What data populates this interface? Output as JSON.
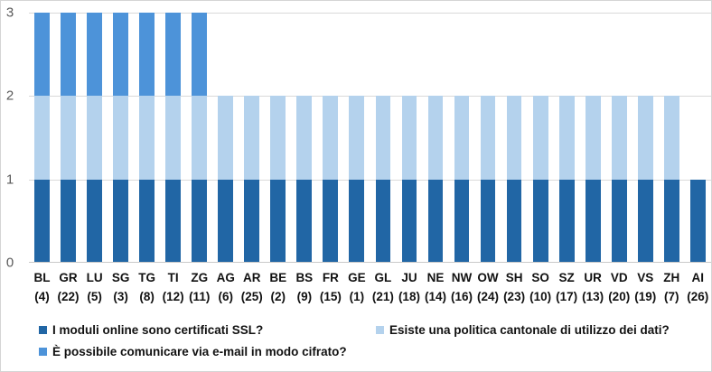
{
  "chart_data": {
    "type": "bar",
    "stacked": true,
    "title": "",
    "xlabel": "",
    "ylabel": "",
    "ylim": [
      0,
      3
    ],
    "yticks": [
      0,
      1,
      2,
      3
    ],
    "grid": true,
    "legend_position": "bottom",
    "categories": [
      "BL",
      "GR",
      "LU",
      "SG",
      "TG",
      "TI",
      "ZG",
      "AG",
      "AR",
      "BE",
      "BS",
      "FR",
      "GE",
      "GL",
      "JU",
      "NE",
      "NW",
      "OW",
      "SH",
      "SO",
      "SZ",
      "UR",
      "VD",
      "VS",
      "ZH",
      "AI"
    ],
    "category_ranks": [
      "(4)",
      "(22)",
      "(5)",
      "(3)",
      "(8)",
      "(12)",
      "(11)",
      "(6)",
      "(25)",
      "(2)",
      "(9)",
      "(15)",
      "(1)",
      "(21)",
      "(18)",
      "(14)",
      "(16)",
      "(24)",
      "(23)",
      "(10)",
      "(17)",
      "(13)",
      "(20)",
      "(19)",
      "(7)",
      "(26)"
    ],
    "series": [
      {
        "name": "I moduli online sono certificati SSL?",
        "color": "#2166a5",
        "values": [
          1,
          1,
          1,
          1,
          1,
          1,
          1,
          1,
          1,
          1,
          1,
          1,
          1,
          1,
          1,
          1,
          1,
          1,
          1,
          1,
          1,
          1,
          1,
          1,
          1,
          1
        ]
      },
      {
        "name": "Esiste una politica cantonale di utilizzo dei dati?",
        "color": "#b4d2ed",
        "values": [
          1,
          1,
          1,
          1,
          1,
          1,
          1,
          1,
          1,
          1,
          1,
          1,
          1,
          1,
          1,
          1,
          1,
          1,
          1,
          1,
          1,
          1,
          1,
          1,
          1,
          0
        ]
      },
      {
        "name": "È possibile comunicare via e-mail in modo cifrato?",
        "color": "#4d93d9",
        "values": [
          1,
          1,
          1,
          1,
          1,
          1,
          1,
          0,
          0,
          0,
          0,
          0,
          0,
          0,
          0,
          0,
          0,
          0,
          0,
          0,
          0,
          0,
          0,
          0,
          0,
          0
        ]
      }
    ],
    "colors": {
      "axis_text": "#595959",
      "label_text": "#111111",
      "gridline": "#d9d9d9",
      "axis_line": "#c9c9c9",
      "background": "#ffffff",
      "border": "#d5d5d5"
    }
  }
}
